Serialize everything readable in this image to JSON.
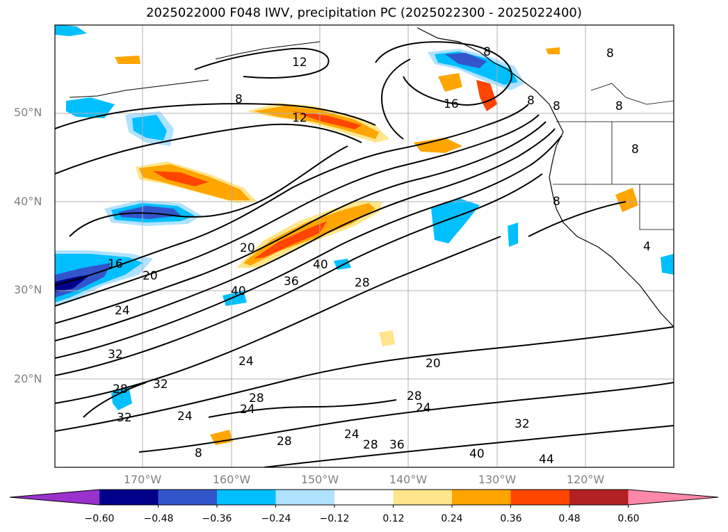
{
  "title": "2025022000 F048 IWV, precipitation PC (2025022300 - 2025022400)",
  "map": {
    "lat_labels": [
      "50°N",
      "40°N",
      "30°N",
      "20°N"
    ],
    "lon_labels": [
      "170°W",
      "160°W",
      "150°W",
      "140°W",
      "130°W",
      "120°W"
    ],
    "contour_labels": [
      "12",
      "8",
      "12",
      "16",
      "8",
      "8",
      "8",
      "8",
      "8",
      "8",
      "8",
      "16",
      "20",
      "20",
      "24",
      "40",
      "36",
      "40",
      "28",
      "32",
      "24",
      "32",
      "28",
      "28",
      "24",
      "28",
      "20",
      "24",
      "24",
      "28",
      "36",
      "40",
      "32",
      "44",
      "28",
      "32",
      "24",
      "8",
      "4"
    ]
  },
  "colorbar": {
    "ticks": [
      "−0.60",
      "−0.48",
      "−0.36",
      "−0.24",
      "−0.12",
      "0.12",
      "0.24",
      "0.36",
      "0.48",
      "0.60"
    ],
    "colors": [
      "#9932cc",
      "#00008b",
      "#3355cc",
      "#00bfff",
      "#b0e2ff",
      "#ffffff",
      "#ffe68a",
      "#ffa500",
      "#ff4500",
      "#b22222",
      "#ff88aa"
    ]
  }
}
